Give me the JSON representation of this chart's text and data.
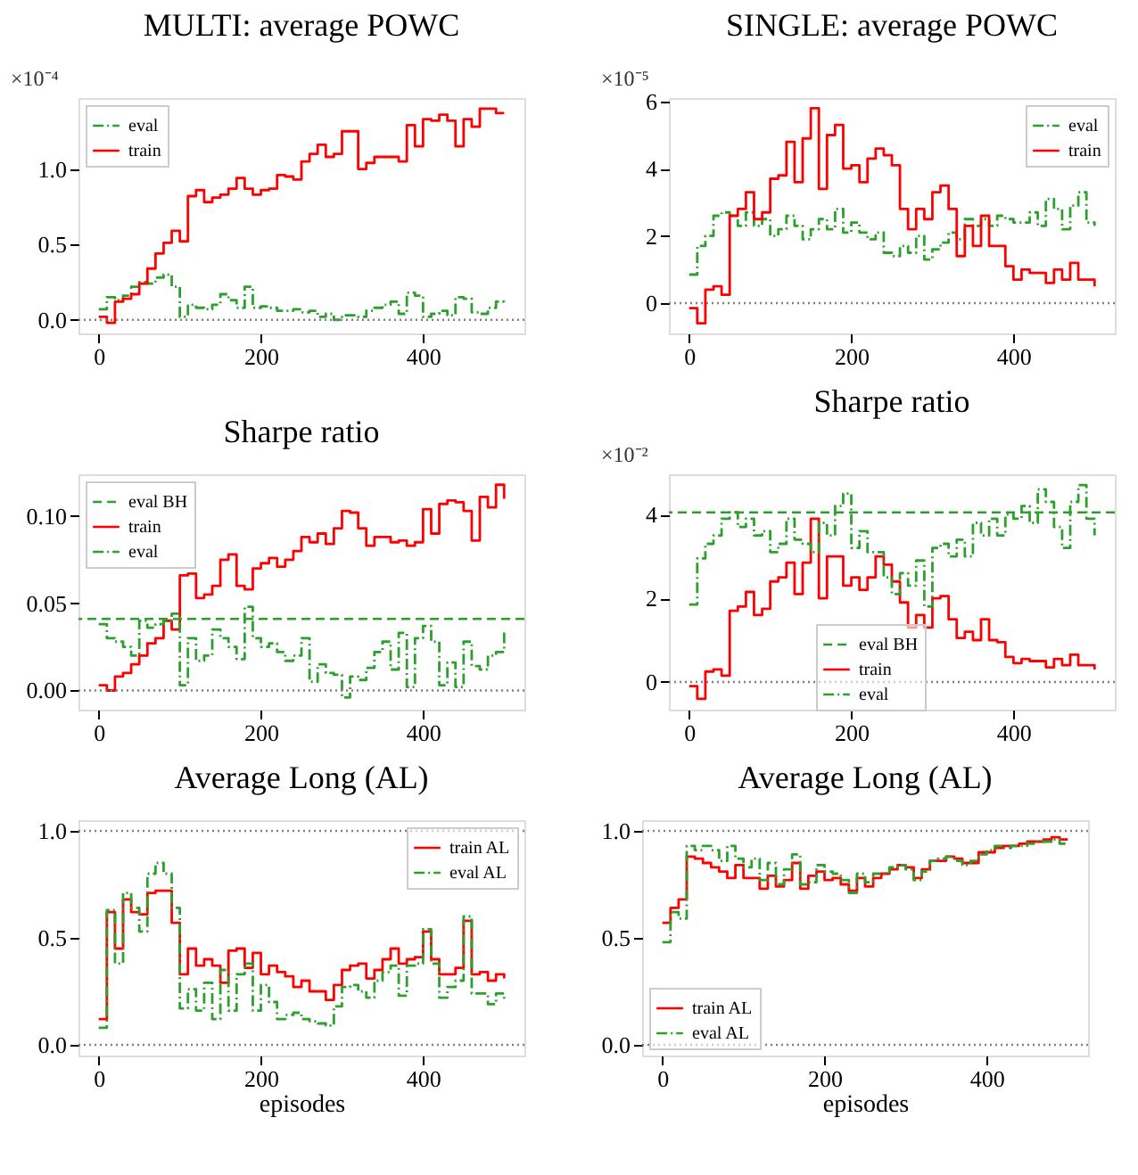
{
  "chart_data": [
    {
      "type": "step",
      "title": "MULTI: average POWC",
      "annotations": [
        "×10⁻⁴"
      ],
      "x": [
        0,
        10,
        20,
        30,
        40,
        50,
        60,
        70,
        80,
        90,
        100,
        110,
        120,
        130,
        140,
        150,
        160,
        170,
        180,
        190,
        200,
        210,
        220,
        230,
        240,
        250,
        260,
        270,
        280,
        290,
        300,
        310,
        320,
        330,
        340,
        350,
        360,
        370,
        380,
        390,
        400,
        410,
        420,
        430,
        440,
        450,
        460,
        470,
        480,
        490,
        500
      ],
      "xlim": [
        -25,
        525
      ],
      "xticks": [
        0,
        200,
        400
      ],
      "ylim": [
        -0.09,
        1.47
      ],
      "yticks": [
        {
          "value": 0,
          "label": "0.0"
        },
        {
          "value": 0.5,
          "label": "0.5"
        },
        {
          "value": 1,
          "label": "1.0"
        }
      ],
      "legend": "top left",
      "grid": false,
      "ref_lines": [
        {
          "axis": "y",
          "value": 0,
          "color": "#808080",
          "line_style": "dotted"
        }
      ],
      "series": [
        {
          "name": "eval",
          "color": "#2ca02c",
          "line_style": "dashdot",
          "values": [
            0.07,
            0.15,
            0.13,
            0.16,
            0.22,
            0.25,
            0.24,
            0.28,
            0.3,
            0.22,
            0.02,
            0.1,
            0.08,
            0.07,
            0.1,
            0.17,
            0.13,
            0.08,
            0.22,
            0.08,
            0.09,
            0.08,
            0.06,
            0.06,
            0.07,
            0.05,
            0.06,
            0.02,
            0.04,
            0.0,
            0.03,
            0.03,
            0.02,
            0.06,
            0.08,
            0.1,
            0.12,
            0.04,
            0.18,
            0.16,
            0.02,
            0.04,
            0.06,
            0.03,
            0.15,
            0.14,
            0.05,
            0.04,
            0.08,
            0.12,
            0.1
          ]
        },
        {
          "name": "train",
          "color": "#ff0000",
          "line_style": "solid",
          "values": [
            0.02,
            -0.02,
            0.12,
            0.14,
            0.17,
            0.24,
            0.34,
            0.44,
            0.51,
            0.59,
            0.52,
            0.82,
            0.86,
            0.78,
            0.81,
            0.83,
            0.87,
            0.94,
            0.87,
            0.83,
            0.86,
            0.87,
            0.96,
            0.95,
            0.93,
            1.05,
            1.1,
            1.16,
            1.08,
            1.1,
            1.25,
            1.25,
            1.0,
            1.04,
            1.08,
            1.08,
            1.08,
            1.05,
            1.29,
            1.15,
            1.33,
            1.32,
            1.36,
            1.32,
            1.15,
            1.33,
            1.28,
            1.4,
            1.4,
            1.37,
            1.37
          ]
        }
      ]
    },
    {
      "type": "step",
      "title": "SINGLE: average POWC",
      "annotations": [
        "×10⁻⁵"
      ],
      "x": [
        0,
        10,
        20,
        30,
        40,
        50,
        60,
        70,
        80,
        90,
        100,
        110,
        120,
        130,
        140,
        150,
        160,
        170,
        180,
        190,
        200,
        210,
        220,
        230,
        240,
        250,
        260,
        270,
        280,
        290,
        300,
        310,
        320,
        330,
        340,
        350,
        360,
        370,
        380,
        390,
        400,
        410,
        420,
        430,
        440,
        450,
        460,
        470,
        480,
        490,
        500
      ],
      "xlim": [
        -25,
        525
      ],
      "xticks": [
        0,
        200,
        400
      ],
      "ylim": [
        -0.9,
        6.1
      ],
      "yticks": [
        0,
        2,
        4,
        6
      ],
      "legend": "top right",
      "grid": false,
      "ref_lines": [
        {
          "axis": "y",
          "value": 0,
          "color": "#808080",
          "line_style": "dotted"
        }
      ],
      "series": [
        {
          "name": "eval",
          "color": "#2ca02c",
          "line_style": "dashdot",
          "values": [
            0.85,
            1.7,
            2.0,
            2.6,
            2.7,
            2.6,
            2.3,
            2.7,
            2.3,
            2.5,
            2.0,
            2.2,
            2.6,
            2.3,
            1.9,
            2.2,
            2.5,
            2.2,
            2.8,
            2.1,
            2.4,
            2.1,
            1.9,
            2.1,
            1.5,
            1.4,
            1.7,
            1.5,
            2.0,
            1.3,
            1.6,
            1.8,
            2.1,
            1.9,
            2.5,
            2.3,
            2.5,
            2.3,
            2.6,
            2.5,
            2.4,
            2.4,
            2.7,
            2.3,
            3.1,
            2.8,
            2.2,
            2.9,
            3.3,
            2.4,
            2.3
          ]
        },
        {
          "name": "train",
          "color": "#ff0000",
          "line_style": "solid",
          "values": [
            -0.15,
            -0.6,
            0.4,
            0.5,
            0.25,
            2.6,
            2.8,
            3.3,
            2.5,
            2.7,
            3.7,
            3.8,
            4.8,
            3.6,
            4.9,
            5.8,
            3.4,
            5.0,
            5.3,
            4.0,
            4.1,
            3.6,
            4.3,
            4.6,
            4.4,
            4.1,
            2.8,
            2.2,
            2.8,
            2.5,
            3.3,
            3.5,
            2.8,
            1.4,
            2.3,
            1.7,
            2.6,
            1.7,
            1.7,
            1.1,
            0.7,
            1.0,
            0.9,
            0.9,
            0.6,
            1.0,
            0.7,
            1.2,
            0.7,
            0.7,
            0.5
          ]
        }
      ]
    },
    {
      "type": "step",
      "title": "Sharpe ratio",
      "x": [
        0,
        10,
        20,
        30,
        40,
        50,
        60,
        70,
        80,
        90,
        100,
        110,
        120,
        130,
        140,
        150,
        160,
        170,
        180,
        190,
        200,
        210,
        220,
        230,
        240,
        250,
        260,
        270,
        280,
        290,
        300,
        310,
        320,
        330,
        340,
        350,
        360,
        370,
        380,
        390,
        400,
        410,
        420,
        430,
        440,
        450,
        460,
        470,
        480,
        490,
        500
      ],
      "xlim": [
        -25,
        525
      ],
      "xticks": [
        0,
        200,
        400
      ],
      "ylim": [
        -0.011,
        0.124
      ],
      "yticks": [
        {
          "value": 0,
          "label": "0.00"
        },
        {
          "value": 0.05,
          "label": "0.05"
        },
        {
          "value": 0.1,
          "label": "0.10"
        }
      ],
      "legend": "top left",
      "grid": false,
      "ref_lines": [
        {
          "axis": "y",
          "value": 0.041,
          "label": "eval BH",
          "color": "#2ca02c",
          "line_style": "dashed"
        },
        {
          "axis": "y",
          "value": 0,
          "color": "#808080",
          "line_style": "dotted"
        }
      ],
      "series": [
        {
          "name": "train",
          "color": "#ff0000",
          "line_style": "solid",
          "values": [
            0.003,
            0.0,
            0.008,
            0.01,
            0.015,
            0.02,
            0.027,
            0.03,
            0.04,
            0.035,
            0.066,
            0.067,
            0.053,
            0.055,
            0.06,
            0.075,
            0.078,
            0.06,
            0.058,
            0.07,
            0.073,
            0.076,
            0.071,
            0.075,
            0.08,
            0.088,
            0.085,
            0.09,
            0.084,
            0.093,
            0.103,
            0.102,
            0.093,
            0.083,
            0.088,
            0.088,
            0.085,
            0.086,
            0.083,
            0.085,
            0.104,
            0.09,
            0.107,
            0.109,
            0.108,
            0.103,
            0.086,
            0.111,
            0.105,
            0.118,
            0.11
          ]
        },
        {
          "name": "eval",
          "color": "#2ca02c",
          "line_style": "dashdot",
          "values": [
            0.038,
            0.03,
            0.028,
            0.025,
            0.02,
            0.04,
            0.036,
            0.038,
            0.04,
            0.044,
            0.003,
            0.03,
            0.017,
            0.02,
            0.035,
            0.03,
            0.025,
            0.018,
            0.048,
            0.03,
            0.025,
            0.027,
            0.022,
            0.017,
            0.02,
            0.03,
            0.005,
            0.015,
            0.01,
            0.009,
            -0.004,
            0.008,
            0.006,
            0.013,
            0.022,
            0.028,
            0.012,
            0.033,
            0.002,
            0.03,
            0.037,
            0.028,
            0.003,
            0.016,
            0.002,
            0.028,
            0.014,
            0.012,
            0.02,
            0.022,
            0.035
          ]
        }
      ]
    },
    {
      "type": "step",
      "title": "Sharpe ratio",
      "annotations": [
        "×10⁻²"
      ],
      "x": [
        0,
        10,
        20,
        30,
        40,
        50,
        60,
        70,
        80,
        90,
        100,
        110,
        120,
        130,
        140,
        150,
        160,
        170,
        180,
        190,
        200,
        210,
        220,
        230,
        240,
        250,
        260,
        270,
        280,
        290,
        300,
        310,
        320,
        330,
        340,
        350,
        360,
        370,
        380,
        390,
        400,
        410,
        420,
        430,
        440,
        450,
        460,
        470,
        480,
        490,
        500
      ],
      "xlim": [
        -25,
        525
      ],
      "xticks": [
        0,
        200,
        400
      ],
      "ylim": [
        -0.66,
        4.96
      ],
      "yticks": [
        0,
        2,
        4
      ],
      "legend": "bottom",
      "grid": false,
      "ref_lines": [
        {
          "axis": "y",
          "value": 4.05,
          "label": "eval BH",
          "color": "#2ca02c",
          "line_style": "dashed"
        },
        {
          "axis": "y",
          "value": 0,
          "color": "#808080",
          "line_style": "dotted"
        }
      ],
      "series": [
        {
          "name": "train",
          "color": "#ff0000",
          "line_style": "solid",
          "values": [
            -0.1,
            -0.4,
            0.25,
            0.3,
            0.15,
            1.7,
            1.8,
            2.15,
            1.6,
            1.75,
            2.4,
            2.5,
            2.85,
            2.1,
            2.85,
            3.9,
            2.0,
            3.0,
            3.0,
            2.3,
            2.5,
            2.2,
            2.5,
            3.0,
            2.8,
            2.4,
            1.9,
            1.3,
            1.6,
            1.3,
            2.0,
            2.05,
            1.5,
            1.05,
            1.2,
            1.0,
            1.5,
            1.0,
            0.95,
            0.6,
            0.45,
            0.55,
            0.5,
            0.5,
            0.35,
            0.55,
            0.4,
            0.65,
            0.4,
            0.4,
            0.3
          ]
        },
        {
          "name": "eval",
          "color": "#2ca02c",
          "line_style": "dashdot",
          "values": [
            1.85,
            2.95,
            3.3,
            3.5,
            3.9,
            4.05,
            3.7,
            3.9,
            3.5,
            3.6,
            3.1,
            3.3,
            3.9,
            3.4,
            3.3,
            3.1,
            3.8,
            3.5,
            4.2,
            4.5,
            3.2,
            3.6,
            3.1,
            3.1,
            2.5,
            2.1,
            2.6,
            2.3,
            2.9,
            1.8,
            3.2,
            3.3,
            3.0,
            3.4,
            3.0,
            3.8,
            3.5,
            3.9,
            3.5,
            4.0,
            3.9,
            4.2,
            3.8,
            4.6,
            4.3,
            3.7,
            3.2,
            4.3,
            4.7,
            3.9,
            3.5
          ]
        }
      ]
    },
    {
      "type": "step",
      "title": "Average Long (AL)",
      "xlabel": "episodes",
      "x": [
        0,
        10,
        20,
        30,
        40,
        50,
        60,
        70,
        80,
        90,
        100,
        110,
        120,
        130,
        140,
        150,
        160,
        170,
        180,
        190,
        200,
        210,
        220,
        230,
        240,
        250,
        260,
        270,
        280,
        290,
        300,
        310,
        320,
        330,
        340,
        350,
        360,
        370,
        380,
        390,
        400,
        410,
        420,
        430,
        440,
        450,
        460,
        470,
        480,
        490,
        500
      ],
      "xlim": [
        -25,
        525
      ],
      "xticks": [
        0,
        200,
        400
      ],
      "ylim": [
        -0.05,
        1.05
      ],
      "yticks": [
        {
          "value": 0,
          "label": "0.0"
        },
        {
          "value": 0.5,
          "label": "0.5"
        },
        {
          "value": 1,
          "label": "1.0"
        }
      ],
      "legend": "top right",
      "grid": false,
      "ref_lines": [
        {
          "axis": "y",
          "value": 0,
          "color": "#808080",
          "line_style": "dotted"
        },
        {
          "axis": "y",
          "value": 1,
          "color": "#808080",
          "line_style": "dotted"
        }
      ],
      "series": [
        {
          "name": "train AL",
          "color": "#ff0000",
          "line_style": "solid",
          "values": [
            0.12,
            0.62,
            0.45,
            0.68,
            0.62,
            0.61,
            0.71,
            0.72,
            0.72,
            0.57,
            0.33,
            0.45,
            0.37,
            0.4,
            0.37,
            0.29,
            0.44,
            0.45,
            0.36,
            0.43,
            0.33,
            0.37,
            0.34,
            0.32,
            0.27,
            0.3,
            0.25,
            0.25,
            0.21,
            0.28,
            0.35,
            0.37,
            0.38,
            0.31,
            0.35,
            0.4,
            0.45,
            0.38,
            0.4,
            0.41,
            0.53,
            0.4,
            0.33,
            0.33,
            0.36,
            0.58,
            0.33,
            0.34,
            0.3,
            0.33,
            0.31
          ]
        },
        {
          "name": "eval AL",
          "color": "#2ca02c",
          "line_style": "dashdot",
          "values": [
            0.08,
            0.63,
            0.38,
            0.71,
            0.64,
            0.53,
            0.8,
            0.85,
            0.8,
            0.64,
            0.17,
            0.26,
            0.16,
            0.29,
            0.12,
            0.35,
            0.16,
            0.33,
            0.38,
            0.16,
            0.28,
            0.2,
            0.12,
            0.14,
            0.15,
            0.12,
            0.11,
            0.1,
            0.09,
            0.18,
            0.27,
            0.28,
            0.25,
            0.22,
            0.3,
            0.34,
            0.37,
            0.23,
            0.37,
            0.38,
            0.54,
            0.38,
            0.22,
            0.27,
            0.3,
            0.6,
            0.24,
            0.24,
            0.19,
            0.24,
            0.21
          ]
        }
      ]
    },
    {
      "type": "step",
      "title": "Average Long (AL)",
      "xlabel": "episodes",
      "x": [
        0,
        10,
        20,
        30,
        40,
        50,
        60,
        70,
        80,
        90,
        100,
        110,
        120,
        130,
        140,
        150,
        160,
        170,
        180,
        190,
        200,
        210,
        220,
        230,
        240,
        250,
        260,
        270,
        280,
        290,
        300,
        310,
        320,
        330,
        340,
        350,
        360,
        370,
        380,
        390,
        400,
        410,
        420,
        430,
        440,
        450,
        460,
        470,
        480,
        490,
        500
      ],
      "xlim": [
        -25,
        525
      ],
      "xticks": [
        0,
        200,
        400
      ],
      "ylim": [
        -0.05,
        1.05
      ],
      "yticks": [
        {
          "value": 0,
          "label": "0.0"
        },
        {
          "value": 0.5,
          "label": "0.5"
        },
        {
          "value": 1,
          "label": "1.0"
        }
      ],
      "legend": "bottom left",
      "grid": false,
      "ref_lines": [
        {
          "axis": "y",
          "value": 0,
          "color": "#808080",
          "line_style": "dotted"
        },
        {
          "axis": "y",
          "value": 1,
          "color": "#808080",
          "line_style": "dotted"
        }
      ],
      "series": [
        {
          "name": "train AL",
          "color": "#ff0000",
          "line_style": "solid",
          "values": [
            0.57,
            0.64,
            0.68,
            0.88,
            0.87,
            0.85,
            0.83,
            0.81,
            0.78,
            0.84,
            0.78,
            0.78,
            0.73,
            0.79,
            0.74,
            0.77,
            0.85,
            0.73,
            0.79,
            0.81,
            0.77,
            0.78,
            0.75,
            0.72,
            0.78,
            0.74,
            0.78,
            0.8,
            0.82,
            0.84,
            0.83,
            0.78,
            0.82,
            0.86,
            0.86,
            0.88,
            0.87,
            0.85,
            0.85,
            0.9,
            0.9,
            0.92,
            0.93,
            0.93,
            0.94,
            0.95,
            0.95,
            0.96,
            0.97,
            0.96,
            0.96
          ]
        },
        {
          "name": "eval AL",
          "color": "#2ca02c",
          "line_style": "dashdot",
          "values": [
            0.48,
            0.62,
            0.59,
            0.93,
            0.91,
            0.93,
            0.91,
            0.86,
            0.93,
            0.87,
            0.83,
            0.87,
            0.77,
            0.85,
            0.75,
            0.82,
            0.89,
            0.75,
            0.76,
            0.84,
            0.81,
            0.8,
            0.77,
            0.71,
            0.8,
            0.76,
            0.8,
            0.8,
            0.83,
            0.84,
            0.82,
            0.77,
            0.81,
            0.86,
            0.87,
            0.88,
            0.86,
            0.84,
            0.86,
            0.89,
            0.91,
            0.93,
            0.92,
            0.93,
            0.93,
            0.94,
            0.95,
            0.95,
            0.96,
            0.94,
            0.94
          ]
        }
      ]
    }
  ]
}
